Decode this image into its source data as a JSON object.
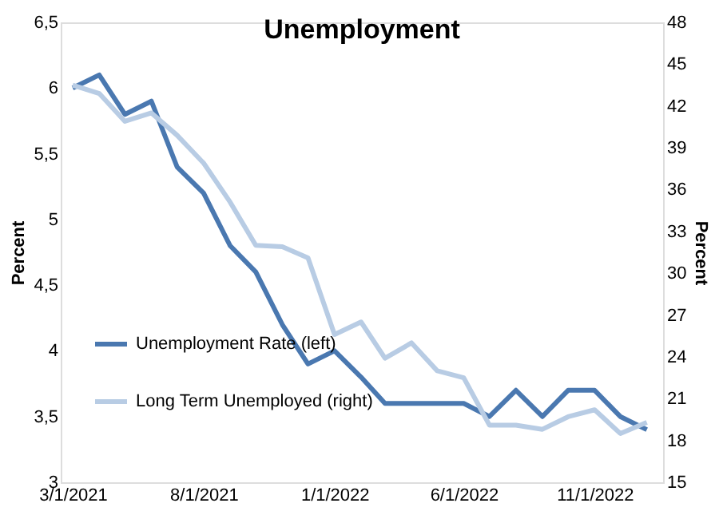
{
  "chart_data": {
    "type": "line",
    "title": "Unemployment",
    "ylabel": "Percent",
    "y2label": "Percent",
    "x": [
      "2021-03",
      "2021-04",
      "2021-05",
      "2021-06",
      "2021-07",
      "2021-08",
      "2021-09",
      "2021-10",
      "2021-11",
      "2021-12",
      "2022-01",
      "2022-02",
      "2022-03",
      "2022-04",
      "2022-05",
      "2022-06",
      "2022-07",
      "2022-08",
      "2022-09",
      "2022-10",
      "2022-11",
      "2022-12",
      "2023-01"
    ],
    "series": [
      {
        "name": "Unemployment Rate (left)",
        "color": "#4a78b0",
        "values": [
          6.0,
          6.1,
          5.8,
          5.9,
          5.4,
          5.2,
          4.8,
          4.6,
          4.2,
          3.9,
          4.0,
          3.8,
          3.6,
          3.6,
          3.6,
          3.6,
          3.5,
          3.7,
          3.5,
          3.7,
          3.7,
          3.5,
          3.4
        ]
      },
      {
        "name": "Long Term Unemployed (right)",
        "color": "#b8cce4",
        "axis": "y2",
        "values": [
          43.5,
          42.9,
          40.9,
          41.5,
          39.9,
          37.9,
          35.1,
          32.0,
          31.9,
          31.1,
          25.6,
          26.5,
          23.9,
          25.0,
          23.0,
          22.5,
          19.1,
          19.1,
          18.8,
          19.7,
          20.2,
          18.5,
          19.3
        ]
      }
    ],
    "xlim": [
      "2021-02-15",
      "2023-01-20"
    ],
    "xticks": [
      {
        "value": "2021-03-01",
        "label": "3/1/2021"
      },
      {
        "value": "2021-08-01",
        "label": "8/1/2021"
      },
      {
        "value": "2022-01-01",
        "label": "1/1/2022"
      },
      {
        "value": "2022-06-01",
        "label": "6/1/2022"
      },
      {
        "value": "2022-11-01",
        "label": "11/1/2022"
      }
    ],
    "ylim": [
      3,
      6.5
    ],
    "yticks": [
      3,
      {
        "value": 3.5,
        "label": "3,5"
      },
      4,
      {
        "value": 4.5,
        "label": "4,5"
      },
      5,
      {
        "value": 5.5,
        "label": "5,5"
      },
      6,
      {
        "value": 6.5,
        "label": "6,5"
      }
    ],
    "y2lim": [
      15,
      48
    ],
    "y2ticks": [
      15,
      18,
      21,
      24,
      27,
      30,
      33,
      36,
      39,
      42,
      45,
      48
    ],
    "grid": false,
    "legend": "left",
    "marker": "none",
    "line_style": "solid"
  }
}
